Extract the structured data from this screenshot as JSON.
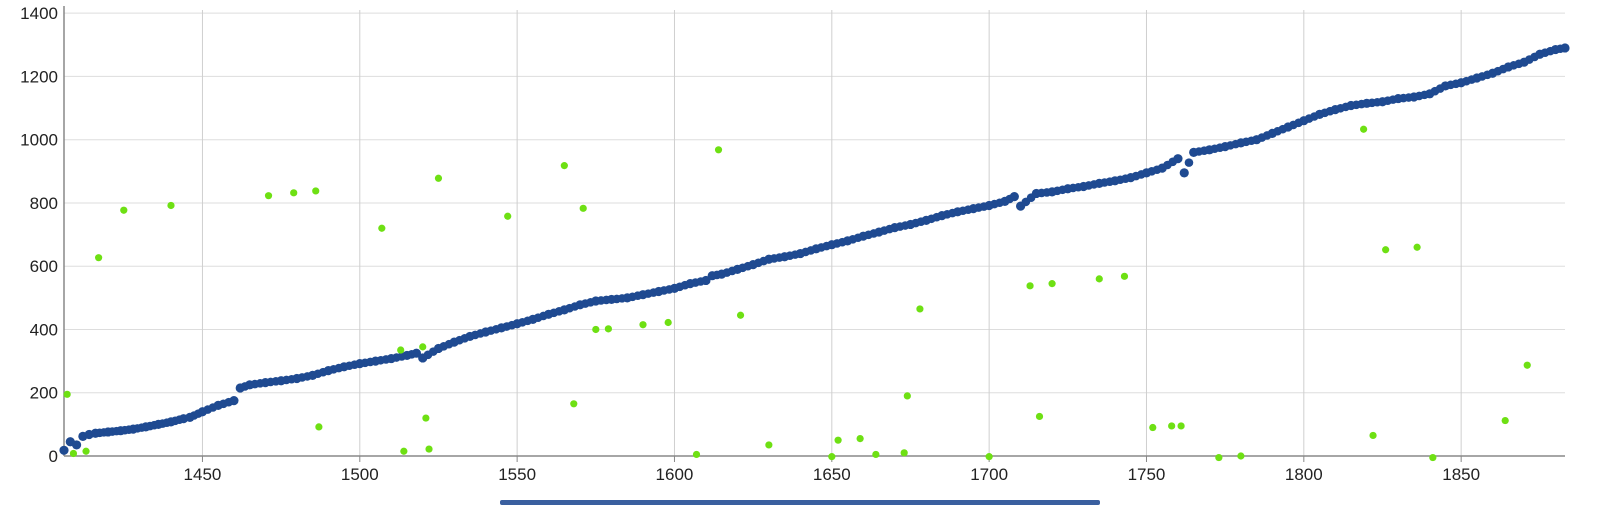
{
  "chart_data": {
    "type": "scatter",
    "title": "",
    "xlabel": "",
    "ylabel": "",
    "xlim": [
      1406,
      1883
    ],
    "ylim": [
      0,
      1410
    ],
    "grid": true,
    "x_ticks": [
      "1450",
      "1500",
      "1550",
      "1600",
      "1650",
      "1700",
      "1750",
      "1800",
      "1850"
    ],
    "y_ticks": [
      "0",
      "200",
      "400",
      "600",
      "800",
      "1000",
      "1200",
      "1400"
    ],
    "colors": {
      "main_series": "#1f4a91",
      "outlier_series": "#6ee013",
      "grid": "#cfcfcf",
      "axis": "#888888"
    },
    "series": [
      {
        "points": [
          [
            1406,
            18
          ],
          [
            1408,
            45
          ],
          [
            1410,
            35
          ],
          [
            1412,
            62
          ],
          [
            1414,
            68
          ],
          [
            1416,
            72
          ],
          [
            1420,
            76
          ],
          [
            1424,
            80
          ],
          [
            1428,
            85
          ],
          [
            1432,
            92
          ],
          [
            1436,
            100
          ],
          [
            1440,
            108
          ],
          [
            1444,
            118
          ],
          [
            1446,
            122
          ],
          [
            1450,
            140
          ],
          [
            1455,
            160
          ],
          [
            1460,
            175
          ],
          [
            1462,
            215
          ],
          [
            1465,
            225
          ],
          [
            1470,
            232
          ],
          [
            1475,
            238
          ],
          [
            1480,
            245
          ],
          [
            1485,
            255
          ],
          [
            1490,
            270
          ],
          [
            1495,
            282
          ],
          [
            1500,
            292
          ],
          [
            1505,
            300
          ],
          [
            1510,
            308
          ],
          [
            1515,
            318
          ],
          [
            1518,
            325
          ],
          [
            1520,
            310
          ],
          [
            1525,
            340
          ],
          [
            1530,
            360
          ],
          [
            1535,
            378
          ],
          [
            1540,
            392
          ],
          [
            1545,
            405
          ],
          [
            1550,
            418
          ],
          [
            1555,
            432
          ],
          [
            1560,
            448
          ],
          [
            1565,
            462
          ],
          [
            1570,
            478
          ],
          [
            1575,
            490
          ],
          [
            1580,
            495
          ],
          [
            1585,
            500
          ],
          [
            1590,
            510
          ],
          [
            1595,
            520
          ],
          [
            1600,
            530
          ],
          [
            1605,
            545
          ],
          [
            1610,
            555
          ],
          [
            1612,
            570
          ],
          [
            1615,
            575
          ],
          [
            1620,
            590
          ],
          [
            1625,
            605
          ],
          [
            1630,
            622
          ],
          [
            1635,
            630
          ],
          [
            1640,
            640
          ],
          [
            1645,
            655
          ],
          [
            1650,
            668
          ],
          [
            1655,
            680
          ],
          [
            1660,
            695
          ],
          [
            1665,
            708
          ],
          [
            1670,
            722
          ],
          [
            1675,
            732
          ],
          [
            1680,
            745
          ],
          [
            1685,
            760
          ],
          [
            1690,
            772
          ],
          [
            1695,
            782
          ],
          [
            1700,
            792
          ],
          [
            1705,
            805
          ],
          [
            1708,
            820
          ],
          [
            1710,
            790
          ],
          [
            1715,
            830
          ],
          [
            1720,
            835
          ],
          [
            1725,
            845
          ],
          [
            1730,
            852
          ],
          [
            1735,
            862
          ],
          [
            1740,
            870
          ],
          [
            1745,
            880
          ],
          [
            1750,
            895
          ],
          [
            1755,
            910
          ],
          [
            1760,
            940
          ],
          [
            1762,
            895
          ],
          [
            1765,
            960
          ],
          [
            1770,
            968
          ],
          [
            1775,
            978
          ],
          [
            1780,
            990
          ],
          [
            1785,
            1000
          ],
          [
            1790,
            1020
          ],
          [
            1795,
            1040
          ],
          [
            1800,
            1060
          ],
          [
            1805,
            1080
          ],
          [
            1810,
            1095
          ],
          [
            1815,
            1108
          ],
          [
            1820,
            1115
          ],
          [
            1825,
            1120
          ],
          [
            1830,
            1130
          ],
          [
            1835,
            1135
          ],
          [
            1840,
            1145
          ],
          [
            1845,
            1170
          ],
          [
            1850,
            1180
          ],
          [
            1855,
            1195
          ],
          [
            1860,
            1210
          ],
          [
            1865,
            1230
          ],
          [
            1870,
            1245
          ],
          [
            1875,
            1270
          ],
          [
            1880,
            1285
          ],
          [
            1883,
            1290
          ]
        ]
      },
      {
        "points": [
          [
            1407,
            195
          ],
          [
            1409,
            8
          ],
          [
            1413,
            15
          ],
          [
            1417,
            627
          ],
          [
            1425,
            777
          ],
          [
            1440,
            792
          ],
          [
            1471,
            823
          ],
          [
            1479,
            832
          ],
          [
            1486,
            838
          ],
          [
            1487,
            92
          ],
          [
            1507,
            720
          ],
          [
            1513,
            335
          ],
          [
            1514,
            15
          ],
          [
            1520,
            345
          ],
          [
            1521,
            120
          ],
          [
            1522,
            22
          ],
          [
            1525,
            878
          ],
          [
            1547,
            758
          ],
          [
            1565,
            918
          ],
          [
            1568,
            165
          ],
          [
            1571,
            783
          ],
          [
            1575,
            400
          ],
          [
            1579,
            402
          ],
          [
            1590,
            415
          ],
          [
            1598,
            422
          ],
          [
            1607,
            5
          ],
          [
            1614,
            968
          ],
          [
            1621,
            445
          ],
          [
            1630,
            35
          ],
          [
            1650,
            -2
          ],
          [
            1652,
            50
          ],
          [
            1659,
            55
          ],
          [
            1664,
            5
          ],
          [
            1673,
            10
          ],
          [
            1674,
            190
          ],
          [
            1678,
            465
          ],
          [
            1700,
            -2
          ],
          [
            1713,
            538
          ],
          [
            1716,
            125
          ],
          [
            1720,
            545
          ],
          [
            1735,
            560
          ],
          [
            1743,
            568
          ],
          [
            1752,
            90
          ],
          [
            1758,
            95
          ],
          [
            1761,
            95
          ],
          [
            1773,
            -5
          ],
          [
            1780,
            0
          ],
          [
            1819,
            1033
          ],
          [
            1822,
            65
          ],
          [
            1826,
            652
          ],
          [
            1836,
            660
          ],
          [
            1841,
            -5
          ],
          [
            1864,
            112
          ],
          [
            1871,
            287
          ]
        ]
      }
    ]
  }
}
